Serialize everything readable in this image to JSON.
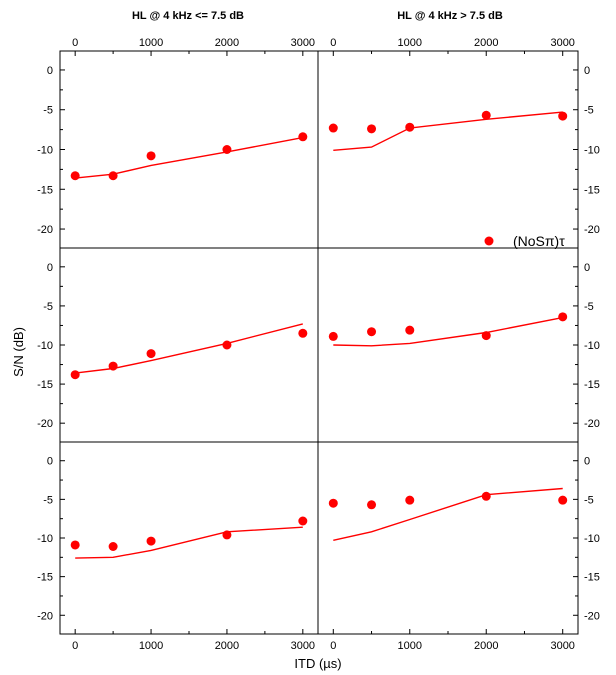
{
  "chart_data": {
    "type": "scatter",
    "column_titles": [
      "HL @ 4 kHz <= 7.5 dB",
      "HL @ 4 kHz > 7.5 dB"
    ],
    "xlabel": "ITD (µs)",
    "ylabel": "S/N (dB)",
    "xlim": [
      -200,
      3200
    ],
    "ylim": [
      -21,
      1
    ],
    "x_ticks": [
      0,
      1000,
      2000,
      3000
    ],
    "y_ticks": [
      0,
      -5,
      -10,
      -15,
      -20
    ],
    "colors": {
      "marker": "#ff0000",
      "line": "#ff0000"
    },
    "legend": {
      "label": "(NoSπ)τ",
      "panel": "top-right",
      "placement": "lower-right"
    },
    "panels": [
      {
        "id": "top-left",
        "points": {
          "x": [
            0,
            500,
            1000,
            2000,
            3000
          ],
          "y": [
            -13.3,
            -13.3,
            -10.8,
            -10.0,
            -8.4
          ]
        },
        "model": {
          "x": [
            0,
            500,
            1000,
            2000,
            3000
          ],
          "y": [
            -13.6,
            -13.1,
            -12.0,
            -10.3,
            -8.5
          ]
        }
      },
      {
        "id": "top-right",
        "points": {
          "x": [
            0,
            500,
            1000,
            2000,
            3000
          ],
          "y": [
            -7.3,
            -7.4,
            -7.2,
            -5.7,
            -5.8
          ]
        },
        "model": {
          "x": [
            0,
            500,
            1000,
            2000,
            3000
          ],
          "y": [
            -10.1,
            -9.7,
            -7.3,
            -6.2,
            -5.3
          ]
        }
      },
      {
        "id": "middle-left",
        "points": {
          "x": [
            0,
            500,
            1000,
            2000,
            3000
          ],
          "y": [
            -13.8,
            -12.7,
            -11.1,
            -10.0,
            -8.5
          ]
        },
        "model": {
          "x": [
            0,
            500,
            1000,
            2000,
            3000
          ],
          "y": [
            -13.6,
            -13.0,
            -12.0,
            -9.8,
            -7.3
          ]
        }
      },
      {
        "id": "middle-right",
        "points": {
          "x": [
            0,
            500,
            1000,
            2000,
            3000
          ],
          "y": [
            -8.9,
            -8.3,
            -8.1,
            -8.8,
            -6.4
          ]
        },
        "model": {
          "x": [
            0,
            500,
            1000,
            2000,
            3000
          ],
          "y": [
            -10.0,
            -10.1,
            -9.8,
            -8.4,
            -6.5
          ]
        }
      },
      {
        "id": "bottom-left",
        "points": {
          "x": [
            0,
            500,
            1000,
            2000,
            3000
          ],
          "y": [
            -10.9,
            -11.1,
            -10.4,
            -9.6,
            -7.8
          ]
        },
        "model": {
          "x": [
            0,
            500,
            1000,
            2000,
            3000
          ],
          "y": [
            -12.6,
            -12.5,
            -11.6,
            -9.2,
            -8.6
          ]
        }
      },
      {
        "id": "bottom-right",
        "points": {
          "x": [
            0,
            500,
            1000,
            2000,
            3000
          ],
          "y": [
            -5.5,
            -5.7,
            -5.1,
            -4.6,
            -5.1
          ]
        },
        "model": {
          "x": [
            0,
            500,
            1000,
            2000,
            3000
          ],
          "y": [
            -10.3,
            -9.2,
            -7.6,
            -4.4,
            -3.6
          ]
        }
      }
    ]
  }
}
